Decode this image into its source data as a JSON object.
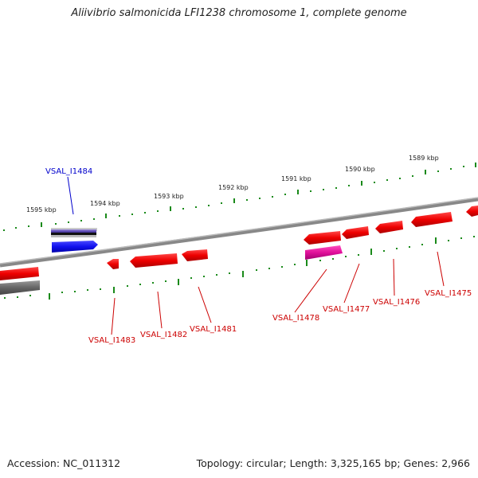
{
  "title": "Aliivibrio salmonicida LFI1238 chromosome 1, complete genome",
  "footer": {
    "accession": "Accession: NC_011312",
    "summary": "Topology: circular; Length: 3,325,165 bp; Genes: 2,966"
  },
  "colors": {
    "backbone": "#777777",
    "tick": "#1a8a1a",
    "forward_gene": "#1010ee",
    "reverse_gene": "#ee0000",
    "highlight_gene": "#e0109a",
    "label_forward": "#0000cc",
    "label_reverse": "#cc0000"
  },
  "scale_labels": [
    "1595 kbp",
    "1594 kbp",
    "1593 kbp",
    "1592 kbp",
    "1591 kbp",
    "1590 kbp",
    "1589 kbp"
  ],
  "gene_labels": [
    "VSAL_I1484",
    "VSAL_I1483",
    "VSAL_I1482",
    "VSAL_I1481",
    "VSAL_I1478",
    "VSAL_I1477",
    "VSAL_I1476",
    "VSAL_I1475"
  ]
}
